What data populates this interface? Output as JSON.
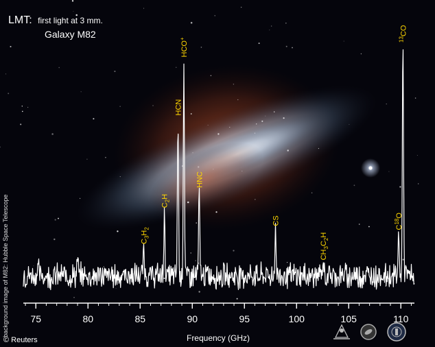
{
  "header": {
    "title_prefix": "LMT:",
    "title_rest": "first light at 3 mm.",
    "subtitle": "Galaxy M82"
  },
  "credits": {
    "side_credit": "background image of M82: Hubble Space Telescope",
    "copyright": "© Reuters"
  },
  "colors": {
    "background": "#05050c",
    "spectrum_line": "#ffffff",
    "label_color": "#ffd700",
    "axis_color": "#ffffff"
  },
  "icons": [
    "ornament-logo-icon",
    "round-emblem-icon",
    "state-seal-icon"
  ],
  "chart_data": {
    "type": "line",
    "xlabel": "Frequency (GHz)",
    "ylabel": "",
    "title": "",
    "xlim": [
      73.8,
      111.3
    ],
    "ylim": [
      -1.0,
      12.0
    ],
    "x_ticks": [
      75,
      80,
      85,
      90,
      95,
      100,
      105,
      110
    ],
    "x_tick_labels": [
      "75",
      "80",
      "85",
      "90",
      "95",
      "100",
      "105",
      "110"
    ],
    "grid": false,
    "lines": [
      {
        "name": "HCO+",
        "label_main": "HCO",
        "sup": "+",
        "freq": 89.19,
        "peak": 10.7
      },
      {
        "name": "HCN",
        "label_main": "HCN",
        "sup": "",
        "freq": 88.63,
        "peak": 7.8
      },
      {
        "name": "HNC",
        "label_main": "HNC",
        "sup": "",
        "freq": 90.66,
        "peak": 4.2
      },
      {
        "name": "C2H",
        "label_main": "C",
        "sub": "2",
        "tail": "H",
        "freq": 87.32,
        "peak": 3.2
      },
      {
        "name": "C3H2",
        "label_main": "C",
        "sub": "3",
        "tail": "H",
        "sub2": "2",
        "freq": 85.34,
        "peak": 1.4
      },
      {
        "name": "CS",
        "label_main": "CS",
        "sup": "",
        "freq": 97.98,
        "peak": 2.3
      },
      {
        "name": "CH3C2H",
        "label_main": "CH",
        "sub": "3",
        "tail": "C",
        "sub2": "2",
        "tail2": "H",
        "freq": 102.55,
        "peak": 0.6
      },
      {
        "name": "C18O",
        "label_main": "C",
        "sup": "18",
        "tail": "O",
        "freq": 109.78,
        "peak": 2.1
      },
      {
        "name": "13CO",
        "pre_sup": "13",
        "label_main": "CO",
        "freq": 110.2,
        "peak": 11.6
      }
    ]
  }
}
